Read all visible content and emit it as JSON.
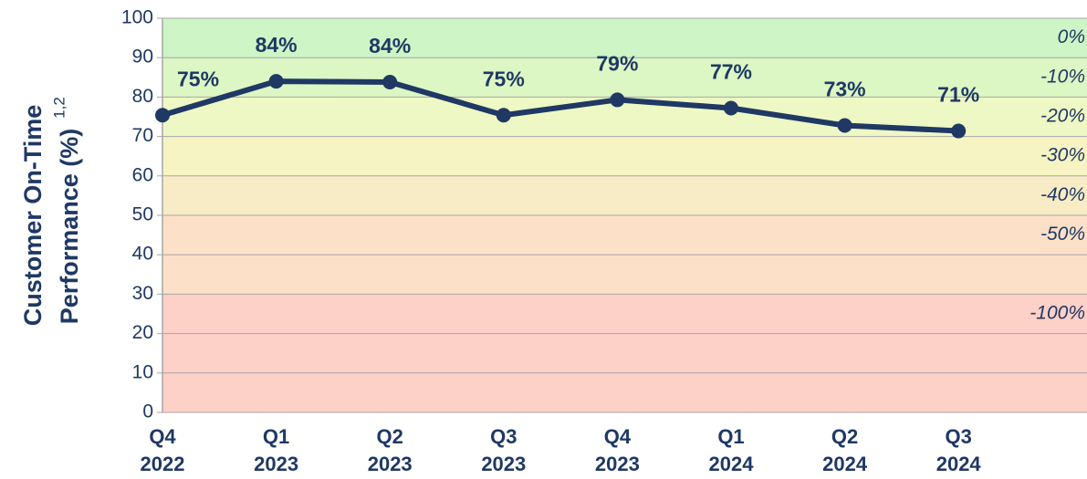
{
  "chart_data": {
    "type": "line",
    "ylabel": [
      "Customer On-Time",
      "Performance (%)"
    ],
    "ylabel_sup": "1,2",
    "categories": [
      "Q4\n2022",
      "Q1\n2023",
      "Q2\n2023",
      "Q3\n2023",
      "Q4\n2023",
      "Q1\n2024",
      "Q2\n2024",
      "Q3\n2024"
    ],
    "series": [
      {
        "name": "Customer On-Time Performance",
        "color": "#1f3864",
        "values": [
          75.4,
          84,
          83.8,
          75.4,
          79.3,
          77.2,
          72.8,
          71.4
        ],
        "value_labels": [
          "75%",
          "84%",
          "84%",
          "75%",
          "79%",
          "77%",
          "73%",
          "71%"
        ]
      }
    ],
    "ylim": [
      0,
      100
    ],
    "yticks": [
      0,
      10,
      20,
      30,
      40,
      50,
      60,
      70,
      80,
      90,
      100
    ],
    "grid": true,
    "bands": [
      {
        "from": 90,
        "to": 100,
        "label": "0%",
        "color": "#cdf5c6"
      },
      {
        "from": 80,
        "to": 90,
        "label": "-10%",
        "color": "#dcf7c4"
      },
      {
        "from": 70,
        "to": 80,
        "label": "-20%",
        "color": "#eef8c4"
      },
      {
        "from": 60,
        "to": 70,
        "label": "-30%",
        "color": "#f6f4c2"
      },
      {
        "from": 50,
        "to": 60,
        "label": "-40%",
        "color": "#f8ecc6"
      },
      {
        "from": 30,
        "to": 50,
        "label": "-50%",
        "color": "#fde0c8"
      },
      {
        "from": 0,
        "to": 30,
        "label": "-100%",
        "color": "#fdd0c8"
      }
    ]
  }
}
